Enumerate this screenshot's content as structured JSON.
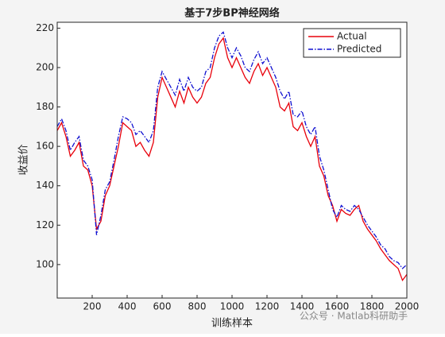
{
  "chart_data": {
    "type": "line",
    "title": "基于7步BP神经网络",
    "x_label": "训练样本",
    "y_label": "收益价",
    "x": [
      0,
      25,
      50,
      75,
      100,
      125,
      150,
      175,
      200,
      225,
      250,
      275,
      300,
      325,
      350,
      375,
      400,
      425,
      450,
      475,
      500,
      525,
      550,
      575,
      600,
      625,
      650,
      675,
      700,
      725,
      750,
      775,
      800,
      825,
      850,
      875,
      900,
      925,
      950,
      975,
      1000,
      1025,
      1050,
      1075,
      1100,
      1125,
      1150,
      1175,
      1200,
      1225,
      1250,
      1275,
      1300,
      1325,
      1350,
      1375,
      1400,
      1425,
      1450,
      1475,
      1500,
      1525,
      1550,
      1575,
      1600,
      1625,
      1650,
      1675,
      1700,
      1725,
      1750,
      1775,
      1800,
      1825,
      1850,
      1875,
      1900,
      1925,
      1950,
      1975,
      2000
    ],
    "series": [
      {
        "name": "Actual",
        "color": "#e8000b",
        "dash": "solid",
        "values": [
          168,
          172,
          165,
          155,
          158,
          162,
          150,
          148,
          140,
          118,
          122,
          135,
          140,
          150,
          160,
          172,
          170,
          168,
          160,
          162,
          158,
          155,
          162,
          185,
          195,
          190,
          185,
          180,
          188,
          182,
          190,
          185,
          182,
          185,
          192,
          195,
          205,
          212,
          215,
          205,
          200,
          205,
          200,
          195,
          192,
          198,
          202,
          196,
          200,
          195,
          190,
          180,
          178,
          182,
          170,
          168,
          172,
          165,
          160,
          165,
          150,
          145,
          135,
          130,
          122,
          128,
          126,
          125,
          128,
          130,
          122,
          118,
          115,
          112,
          108,
          105,
          102,
          100,
          98,
          92,
          95
        ]
      },
      {
        "name": "Predicted",
        "color": "#1010d0",
        "dash": "dashdot",
        "values": [
          170,
          174,
          168,
          158,
          162,
          165,
          153,
          150,
          143,
          115,
          125,
          138,
          142,
          153,
          165,
          175,
          174,
          172,
          166,
          168,
          165,
          162,
          168,
          190,
          198,
          194,
          190,
          186,
          194,
          188,
          195,
          190,
          188,
          190,
          198,
          200,
          210,
          216,
          218,
          210,
          205,
          210,
          206,
          200,
          198,
          204,
          208,
          202,
          205,
          200,
          195,
          188,
          184,
          188,
          176,
          175,
          178,
          170,
          166,
          170,
          155,
          148,
          138,
          128,
          124,
          130,
          128,
          127,
          130,
          128,
          124,
          120,
          117,
          114,
          110,
          108,
          104,
          102,
          101,
          98,
          100
        ]
      }
    ],
    "xlim": [
      0,
      2000
    ],
    "ylim": [
      83,
      223
    ],
    "xticks": [
      200,
      400,
      600,
      800,
      1000,
      1200,
      1400,
      1600,
      1800,
      2000
    ],
    "yticks": [
      100,
      120,
      140,
      160,
      180,
      200,
      220
    ],
    "legend": "northeast",
    "watermark": "公众号 · Matlab科研助手"
  }
}
